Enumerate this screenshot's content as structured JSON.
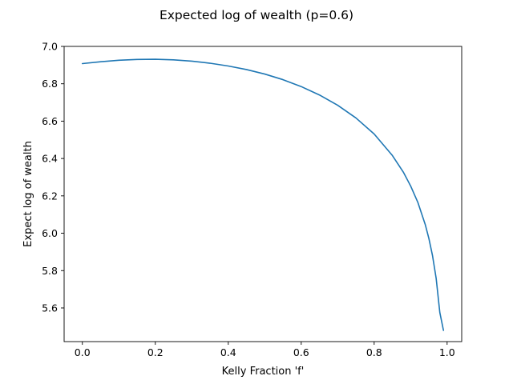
{
  "chart_data": {
    "type": "line",
    "title": "Expected log of wealth (p=0.6)",
    "xlabel": "Kelly Fraction 'f'",
    "ylabel": "Expect log of wealth",
    "xlim": [
      -0.05,
      1.04
    ],
    "ylim": [
      5.42,
      7.0
    ],
    "xticks": [
      "0.0",
      "0.2",
      "0.4",
      "0.6",
      "0.8",
      "1.0"
    ],
    "yticks": [
      "5.6",
      "5.8",
      "6.0",
      "6.2",
      "6.4",
      "6.6",
      "6.8",
      "7.0"
    ],
    "grid": false,
    "series_color": "#1f77b4",
    "x": [
      0.0,
      0.05,
      0.1,
      0.15,
      0.2,
      0.25,
      0.3,
      0.35,
      0.4,
      0.45,
      0.5,
      0.55,
      0.6,
      0.65,
      0.7,
      0.75,
      0.8,
      0.85,
      0.88,
      0.9,
      0.92,
      0.94,
      0.95,
      0.96,
      0.97,
      0.98,
      0.99
    ],
    "y": [
      6.908,
      6.918,
      6.926,
      6.93,
      6.931,
      6.928,
      6.921,
      6.91,
      6.895,
      6.876,
      6.852,
      6.822,
      6.785,
      6.74,
      6.685,
      6.617,
      6.531,
      6.416,
      6.327,
      6.253,
      6.164,
      6.047,
      5.972,
      5.88,
      5.758,
      5.576,
      5.48
    ]
  }
}
